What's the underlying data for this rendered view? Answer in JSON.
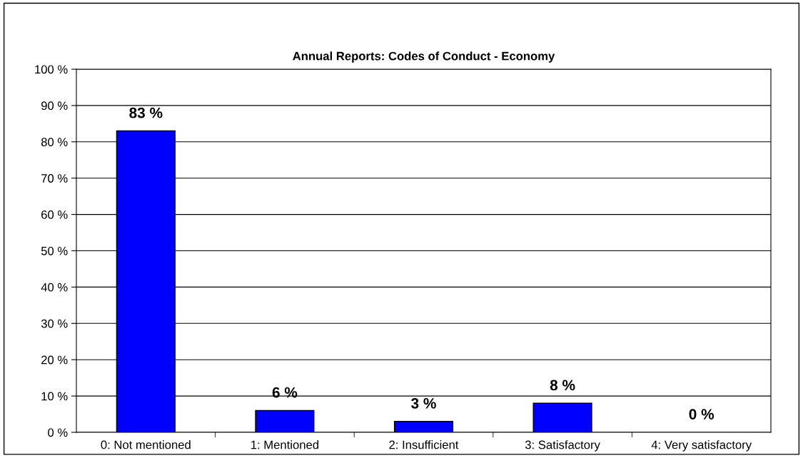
{
  "chart_data": {
    "type": "bar",
    "title": "Annual Reports: Codes of Conduct - Economy",
    "categories": [
      "0: Not mentioned",
      "1: Mentioned",
      "2: Insufficient",
      "3: Satisfactory",
      "4: Very satisfactory"
    ],
    "values": [
      83,
      6,
      3,
      8,
      0
    ],
    "value_labels": [
      "83 %",
      "6 %",
      "3 %",
      "8 %",
      "0 %"
    ],
    "color": "#0000ff",
    "ylim": [
      0,
      100
    ],
    "yticks": [
      {
        "value": 0,
        "label": "0 %"
      },
      {
        "value": 10,
        "label": "10 %"
      },
      {
        "value": 20,
        "label": "20 %"
      },
      {
        "value": 30,
        "label": "30 %"
      },
      {
        "value": 40,
        "label": "40 %"
      },
      {
        "value": 50,
        "label": "50 %"
      },
      {
        "value": 60,
        "label": "60 %"
      },
      {
        "value": 70,
        "label": "70 %"
      },
      {
        "value": 80,
        "label": "80 %"
      },
      {
        "value": 90,
        "label": "90 %"
      },
      {
        "value": 100,
        "label": "100 %"
      }
    ],
    "grid": "y"
  }
}
